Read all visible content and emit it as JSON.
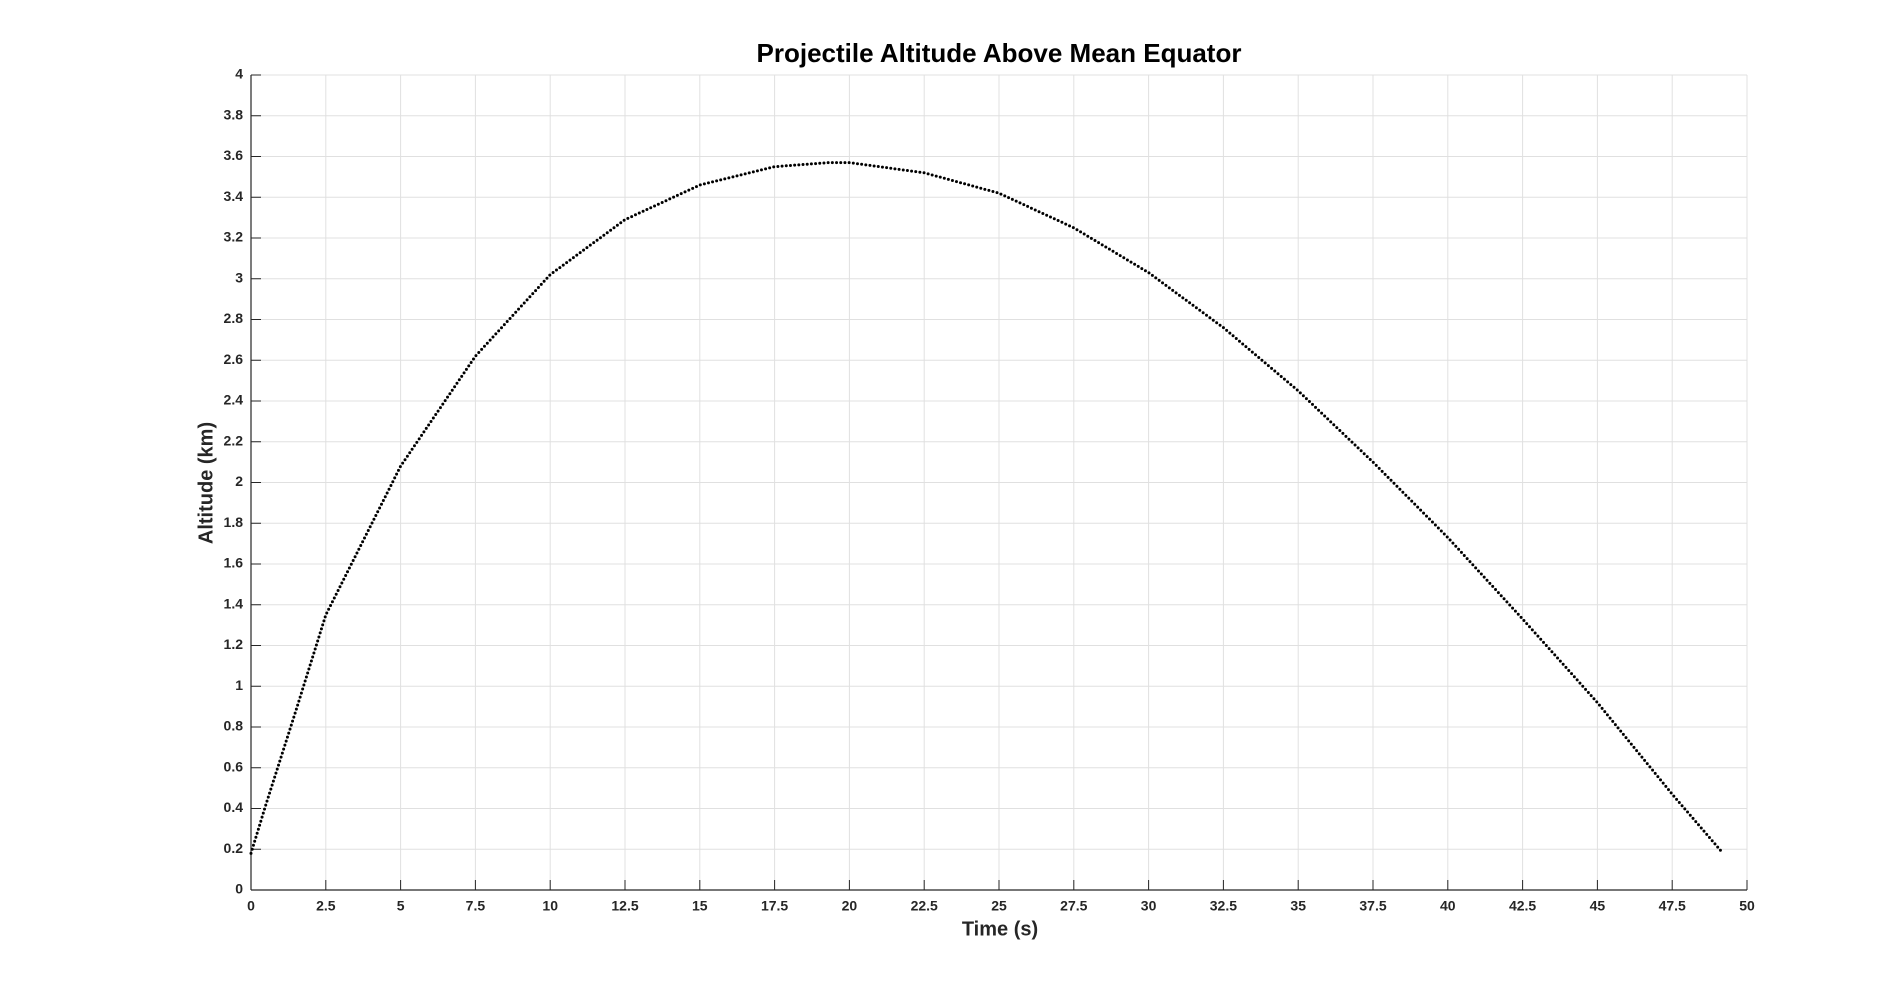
{
  "chart_data": {
    "type": "line",
    "title": "Projectile Altitude Above Mean Equator",
    "xlabel": "Time (s)",
    "ylabel": "Altitude (km)",
    "x": [
      0,
      0.5,
      1,
      1.5,
      2.5,
      5,
      7.5,
      10,
      12.5,
      15,
      17.5,
      19.3,
      20,
      22.5,
      25,
      27.5,
      30,
      32.5,
      35,
      37.5,
      40,
      42.5,
      45,
      47.5,
      49.2
    ],
    "series": [
      {
        "color": "#000000",
        "linestyle": "dotted",
        "values": [
          0.18,
          0.42,
          0.65,
          0.88,
          1.35,
          2.08,
          2.62,
          3.02,
          3.29,
          3.46,
          3.55,
          3.57,
          3.57,
          3.52,
          3.42,
          3.25,
          3.03,
          2.76,
          2.45,
          2.1,
          1.73,
          1.33,
          0.92,
          0.47,
          0.18
        ]
      }
    ],
    "xlim": [
      0,
      50
    ],
    "xticks": [
      0,
      2.5,
      5,
      7.5,
      10,
      12.5,
      15,
      17.5,
      20,
      22.5,
      25,
      27.5,
      30,
      32.5,
      35,
      37.5,
      40,
      42.5,
      45,
      47.5,
      50
    ],
    "ylim": [
      0,
      4
    ],
    "yticks": [
      0,
      0.2,
      0.4,
      0.6,
      0.8,
      1,
      1.2,
      1.4,
      1.6,
      1.8,
      2,
      2.2,
      2.4,
      2.6,
      2.8,
      3,
      3.2,
      3.4,
      3.6,
      3.8,
      4
    ],
    "grid": true
  }
}
